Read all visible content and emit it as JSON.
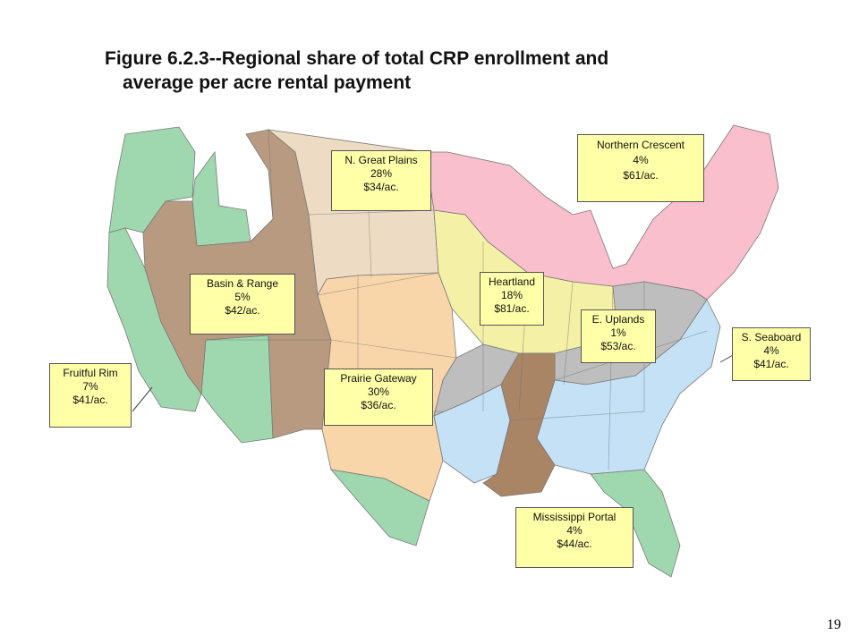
{
  "title": {
    "line1": "Figure 6.2.3--Regional share of total CRP  enrollment and",
    "line2": "average per acre rental payment"
  },
  "regions": [
    {
      "key": "northern_crescent",
      "name": "Northern Crescent",
      "share": "4%",
      "rent": "$61/ac.",
      "color": "#f9bfcc"
    },
    {
      "key": "northern_great_plains",
      "name": "N. Great Plains",
      "share": "28%",
      "rent": "$34/ac.",
      "color": "#eddcc3"
    },
    {
      "key": "heartland",
      "name": "Heartland",
      "share": "18%",
      "rent": "$81/ac.",
      "color": "#f4f0a6"
    },
    {
      "key": "basin_range",
      "name": "Basin & Range",
      "share": "5%",
      "rent": "$42/ac.",
      "color": "#b89a80"
    },
    {
      "key": "eastern_uplands",
      "name": "E. Uplands",
      "share": "1%",
      "rent": "$53/ac.",
      "color": "#bebebe"
    },
    {
      "key": "southern_seaboard",
      "name": "S. Seaboard",
      "share": "4%",
      "rent": "$41/ac.",
      "color": "#c4e1f6"
    },
    {
      "key": "fruitful_rim",
      "name": "Fruitful Rim",
      "share": "7%",
      "rent": "$41/ac.",
      "color": "#9fd8ae"
    },
    {
      "key": "prairie_gateway",
      "name": "Prairie Gateway",
      "share": "30%",
      "rent": "$36/ac.",
      "color": "#f9d6aa"
    },
    {
      "key": "mississippi_portal",
      "name": "Mississippi Portal",
      "share": "4%",
      "rent": "$44/ac.",
      "color": "#a98465"
    }
  ],
  "page_number": "19"
}
